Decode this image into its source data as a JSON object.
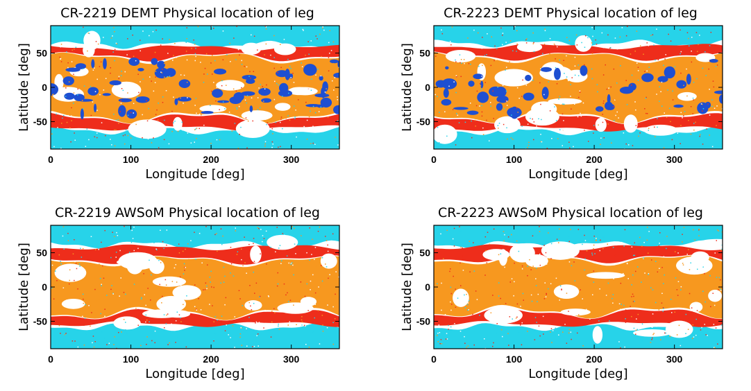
{
  "colors": {
    "cyan": "#27d3e9",
    "red": "#ee2d1b",
    "orange": "#f7981f",
    "blue": "#1e4fd1",
    "white": "#ffffff"
  },
  "chart_data": [
    {
      "type": "heatmap",
      "title": "CR-2219 DEMT Physical location of leg",
      "xlabel": "Longitude [deg]",
      "ylabel": "Latitude [deg]",
      "xlim": [
        0,
        360
      ],
      "ylim": [
        -90,
        90
      ],
      "xticks": [
        "0",
        "100",
        "200",
        "300"
      ],
      "yticks": [
        "50",
        "0",
        "-50"
      ],
      "categories": [
        "cyan",
        "red",
        "orange",
        "blue"
      ],
      "bands": {
        "north_cyan_lat": 62,
        "north_red_lat": 45,
        "south_red_lat": -45,
        "south_cyan_lat": -63
      },
      "blue_fraction": 0.35
    },
    {
      "type": "heatmap",
      "title": "CR-2223 DEMT Physical location of leg",
      "xlabel": "Longitude [deg]",
      "ylabel": "Latitude [deg]",
      "xlim": [
        0,
        360
      ],
      "ylim": [
        -90,
        90
      ],
      "xticks": [
        "0",
        "100",
        "200",
        "300"
      ],
      "yticks": [
        "50",
        "0",
        "-50"
      ],
      "categories": [
        "cyan",
        "red",
        "orange",
        "blue"
      ],
      "bands": {
        "north_cyan_lat": 64,
        "north_red_lat": 46,
        "south_red_lat": -45,
        "south_cyan_lat": -64
      },
      "blue_fraction": 0.25
    },
    {
      "type": "heatmap",
      "title": "CR-2219 AWSoM Physical location of leg",
      "xlabel": "Longitude [deg]",
      "ylabel": "Latitude [deg]",
      "xlim": [
        0,
        360
      ],
      "ylim": [
        -90,
        90
      ],
      "xticks": [
        "0",
        "100",
        "200",
        "300"
      ],
      "yticks": [
        "50",
        "0",
        "-50"
      ],
      "categories": [
        "cyan",
        "red",
        "orange"
      ],
      "bands": {
        "north_cyan_lat": 62,
        "north_red_lat": 40,
        "south_red_lat": -40,
        "south_cyan_lat": -58
      },
      "blue_fraction": 0
    },
    {
      "type": "heatmap",
      "title": "CR-2223 AWSoM Physical location of leg",
      "xlabel": "Longitude [deg]",
      "ylabel": "Latitude [deg]",
      "xlim": [
        0,
        360
      ],
      "ylim": [
        -90,
        90
      ],
      "xticks": [
        "0",
        "100",
        "200",
        "300"
      ],
      "yticks": [
        "50",
        "0",
        "-50"
      ],
      "categories": [
        "cyan",
        "red",
        "orange"
      ],
      "bands": {
        "north_cyan_lat": 62,
        "north_red_lat": 42,
        "south_red_lat": -38,
        "south_cyan_lat": -58
      },
      "blue_fraction": 0
    }
  ]
}
